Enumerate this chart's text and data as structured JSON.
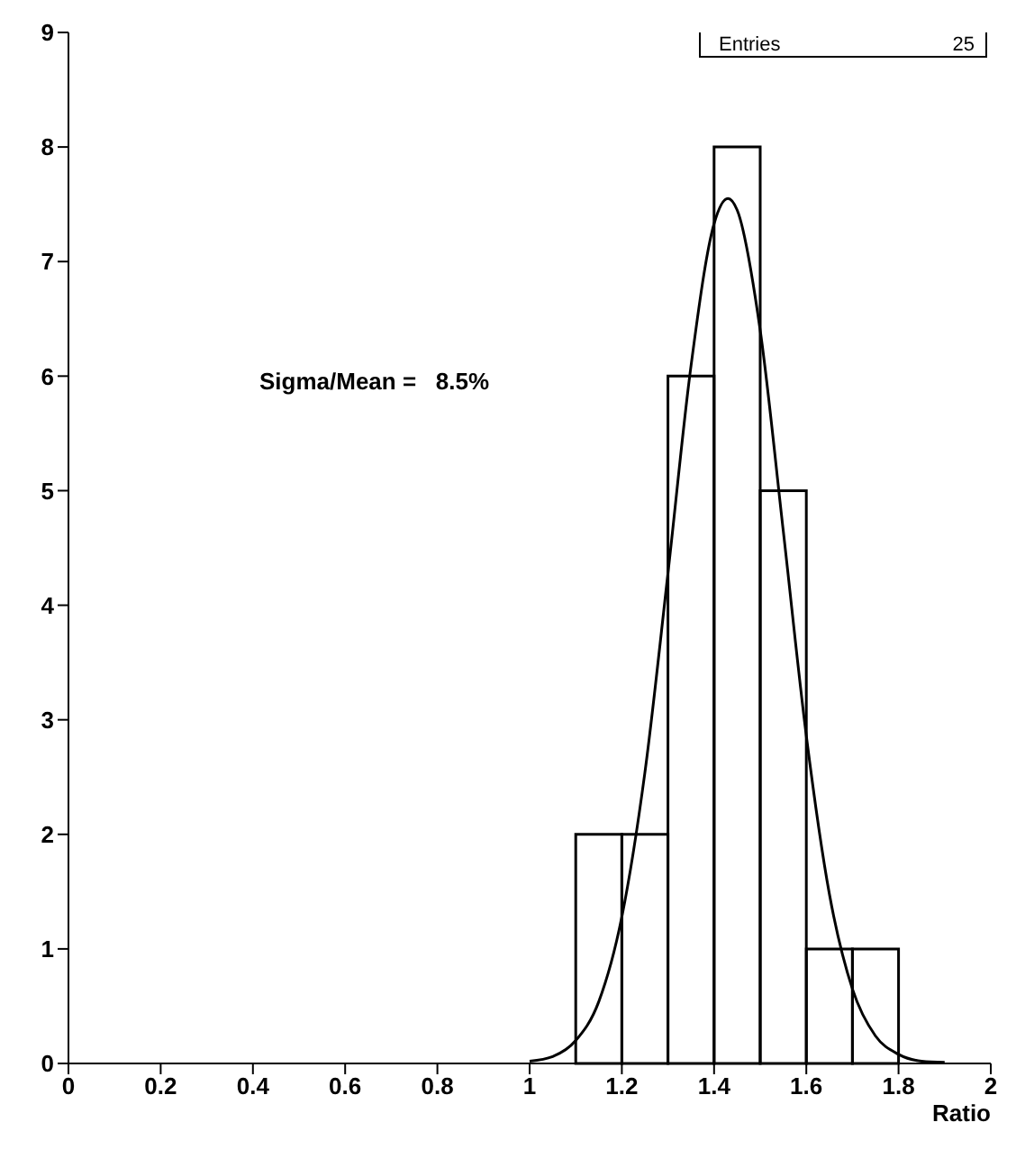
{
  "chart_data": {
    "type": "histogram",
    "xlabel": "Ratio",
    "bins": [
      1.1,
      1.2,
      1.3,
      1.4,
      1.5,
      1.6,
      1.7,
      1.8
    ],
    "values": [
      2,
      2,
      6,
      8,
      5,
      1,
      1
    ],
    "color": "#000000",
    "series": [
      {
        "type": "line",
        "color": "#000000",
        "x": [
          1.0,
          1.05,
          1.1,
          1.15,
          1.2,
          1.25,
          1.3,
          1.35,
          1.4,
          1.43,
          1.45,
          1.5,
          1.55,
          1.6,
          1.65,
          1.7,
          1.75,
          1.8,
          1.85,
          1.9
        ],
        "values": [
          0.02,
          0.06,
          0.2,
          0.54,
          1.28,
          2.54,
          4.28,
          6.09,
          7.33,
          7.55,
          7.45,
          6.4,
          4.65,
          2.86,
          1.48,
          0.65,
          0.24,
          0.08,
          0.02,
          0.01
        ]
      }
    ],
    "xlim": [
      0,
      2
    ],
    "xticks": [
      0,
      0.2,
      0.4,
      0.6,
      0.8,
      1,
      1.2,
      1.4,
      1.6,
      1.8,
      2
    ],
    "ylim": [
      0,
      9
    ],
    "yticks": [
      0,
      1,
      2,
      3,
      4,
      5,
      6,
      7,
      8,
      9
    ],
    "grid": false,
    "marker": "none",
    "line_style": "solid",
    "annotations": [
      "Sigma/Mean =   8.5%",
      "Entries 25"
    ]
  }
}
